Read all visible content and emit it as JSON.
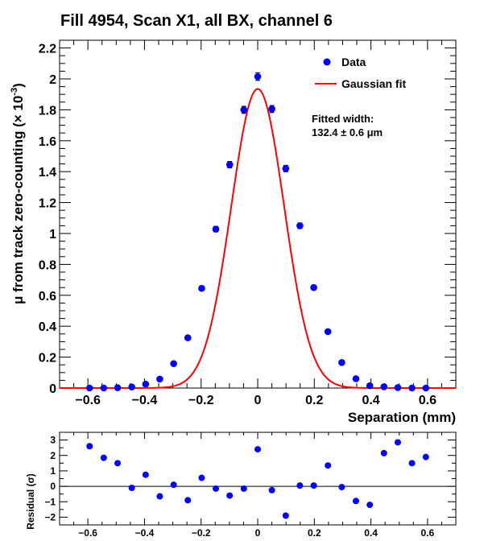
{
  "title": "Fill 4954, Scan X1, all BX, channel 6",
  "legend": {
    "data_label": "Data",
    "fit_label": "Gaussian fit"
  },
  "annotation": {
    "line1": "Fitted width:",
    "line2": "132.4 ± 0.6 μm"
  },
  "colors": {
    "data": "#0000ff",
    "fit": "#ff0000",
    "axis": "#000000"
  },
  "chart_data": [
    {
      "type": "scatter",
      "xlabel": "Separation (mm)",
      "ylabel": "μ from track zero-counting (× 10⁻³)",
      "ylabel_main": "μ from track zero-counting (",
      "ylabel_x": "× 10",
      "ylabel_exp": "-3",
      "ylabel_close": ")",
      "xlim": [
        -0.7,
        0.7
      ],
      "ylim": [
        0,
        2.25
      ],
      "xticks": [
        -0.6,
        -0.4,
        -0.2,
        0,
        0.2,
        0.4,
        0.6
      ],
      "yticks": [
        0,
        0.2,
        0.4,
        0.6,
        0.8,
        1,
        1.2,
        1.4,
        1.6,
        1.8,
        2,
        2.2
      ],
      "series": [
        {
          "name": "Data",
          "x": [
            -0.594,
            -0.544,
            -0.495,
            -0.445,
            -0.396,
            -0.346,
            -0.297,
            -0.247,
            -0.198,
            -0.148,
            -0.099,
            -0.049,
            0.0,
            0.05,
            0.099,
            0.149,
            0.198,
            0.248,
            0.297,
            0.347,
            0.396,
            0.446,
            0.495,
            0.545,
            0.594
          ],
          "y": [
            0.0,
            0.0,
            0.002,
            0.007,
            0.025,
            0.058,
            0.158,
            0.325,
            0.645,
            1.028,
            1.445,
            1.8,
            2.015,
            1.805,
            1.42,
            1.05,
            0.65,
            0.365,
            0.165,
            0.06,
            0.015,
            0.008,
            0.003,
            0.0,
            0.0
          ],
          "yerr": [
            0.004,
            0.004,
            0.004,
            0.005,
            0.006,
            0.008,
            0.01,
            0.012,
            0.015,
            0.018,
            0.021,
            0.023,
            0.025,
            0.023,
            0.021,
            0.018,
            0.015,
            0.012,
            0.01,
            0.008,
            0.006,
            0.005,
            0.004,
            0.004,
            0.004
          ]
        },
        {
          "name": "Gaussian fit",
          "function": "gaussian",
          "amplitude": 1.935,
          "mean": 0.0,
          "sigma": 0.0936,
          "x_range": [
            -0.7,
            0.7
          ]
        }
      ]
    },
    {
      "type": "scatter",
      "xlabel": "",
      "ylabel": "Residual (σ)",
      "xlim": [
        -0.7,
        0.7
      ],
      "ylim": [
        -2.5,
        3.5
      ],
      "xticks": [
        -0.6,
        -0.4,
        -0.2,
        0,
        0.2,
        0.4,
        0.6
      ],
      "yticks": [
        -2,
        -1,
        0,
        1,
        2,
        3
      ],
      "series": [
        {
          "name": "Residual",
          "x": [
            -0.594,
            -0.544,
            -0.495,
            -0.445,
            -0.396,
            -0.346,
            -0.297,
            -0.247,
            -0.198,
            -0.148,
            -0.099,
            -0.049,
            0.0,
            0.05,
            0.099,
            0.149,
            0.198,
            0.248,
            0.297,
            0.347,
            0.396,
            0.446,
            0.495,
            0.545,
            0.594
          ],
          "y": [
            2.6,
            1.85,
            1.5,
            -0.1,
            0.75,
            -0.65,
            0.1,
            -0.9,
            0.55,
            -0.15,
            -0.6,
            -0.15,
            2.4,
            -0.25,
            -1.9,
            0.05,
            0.05,
            1.35,
            -0.05,
            -0.95,
            -1.2,
            2.15,
            2.85,
            1.5,
            1.9
          ]
        }
      ]
    }
  ]
}
